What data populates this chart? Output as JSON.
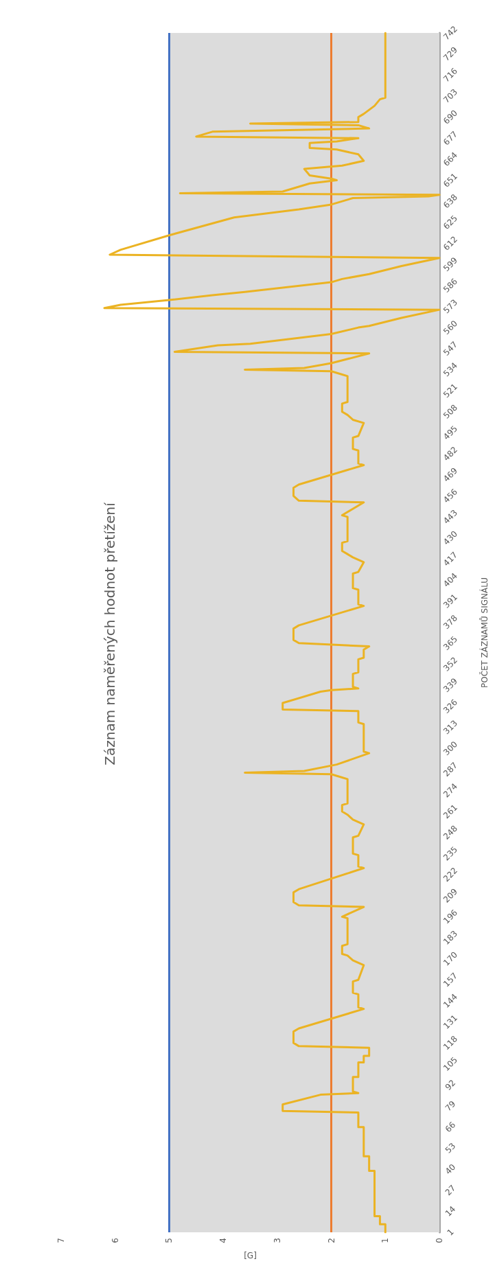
{
  "chart_data": {
    "type": "line",
    "title": "Záznam naměřených hodnot přetížení",
    "xlabel": "[G]",
    "ylabel": "POČET ZÁZNAMŮ SIGNÁLU",
    "series": [
      {
        "color": "#ebb323",
        "x": [
          1.0,
          1.0,
          1.1,
          1.1,
          1.2,
          1.2,
          1.3,
          1.3,
          1.4,
          1.4,
          1.5,
          1.5,
          2.9,
          2.9,
          2.2,
          1.5,
          1.6,
          1.6,
          1.5,
          1.5,
          1.4,
          1.4,
          1.3,
          1.3,
          2.6,
          2.7,
          2.7,
          2.6,
          1.4,
          1.5,
          1.5,
          1.6,
          1.6,
          1.5,
          1.4,
          1.6,
          1.7,
          1.8,
          1.8,
          1.7,
          1.7,
          1.8,
          1.4,
          2.6,
          2.7,
          2.7,
          2.6,
          1.4,
          1.5,
          1.5,
          1.6,
          1.6,
          1.5,
          1.4,
          1.6,
          1.7,
          1.8,
          1.8,
          1.7,
          1.7,
          1.8,
          2.0,
          3.6,
          2.5,
          1.9,
          1.3,
          1.4,
          1.4,
          1.5,
          1.5,
          2.9,
          2.9,
          2.2,
          2.0,
          1.5,
          1.6,
          1.6,
          1.5,
          1.5,
          1.4,
          1.4,
          1.3,
          2.6,
          2.7,
          2.7,
          2.6,
          1.4,
          1.5,
          1.5,
          1.6,
          1.6,
          1.5,
          1.4,
          1.6,
          1.7,
          1.8,
          1.8,
          1.7,
          1.7,
          1.8,
          1.4,
          2.6,
          2.7,
          2.7,
          2.6,
          1.4,
          1.5,
          1.5,
          1.6,
          1.6,
          1.5,
          1.4,
          1.6,
          1.7,
          1.8,
          1.8,
          1.7,
          1.7,
          1.8,
          2.0,
          3.6,
          2.5,
          2.0,
          1.3,
          4.9,
          4.1,
          3.5,
          2.0,
          1.5,
          1.3,
          0.7,
          0,
          6.2,
          5.9,
          5.0,
          4.2,
          3.6,
          2.0,
          1.8,
          1.3,
          0.7,
          0,
          6.1,
          5.9,
          5.0,
          3.8,
          2.6,
          2.0,
          1.6,
          0.2,
          0,
          4.8,
          2.9,
          2.4,
          1.9,
          2.0,
          2.4,
          2.5,
          1.8,
          1.4,
          1.5,
          1.9,
          2.4,
          2.4,
          1.9,
          1.5,
          4.5,
          4.2,
          1.3,
          1.5,
          3.5,
          1.5,
          1.5,
          1.4,
          1.2,
          1.1,
          1.0,
          1.0
        ],
        "values": [
          1,
          6,
          6,
          11,
          11,
          39,
          39,
          48,
          48,
          66,
          66,
          75,
          76,
          80,
          86,
          87,
          88,
          97,
          97,
          106,
          106,
          110,
          110,
          115,
          116,
          118,
          125,
          127,
          139,
          140,
          148,
          149,
          156,
          157,
          166,
          169,
          172,
          173,
          178,
          179,
          195,
          196,
          202,
          203,
          205,
          211,
          213,
          226,
          227,
          234,
          235,
          245,
          246,
          253,
          256,
          259,
          261,
          265,
          266,
          281,
          282,
          284,
          285,
          286,
          290,
          297,
          298,
          315,
          316,
          323,
          324,
          328,
          335,
          336,
          337,
          338,
          346,
          347,
          355,
          356,
          361,
          363,
          365,
          367,
          374,
          376,
          388,
          389,
          398,
          399,
          408,
          409,
          415,
          418,
          420,
          422,
          427,
          428,
          443,
          444,
          452,
          453,
          456,
          461,
          463,
          475,
          476,
          484,
          485,
          492,
          493,
          501,
          503,
          506,
          508,
          513,
          514,
          530,
          531,
          533,
          534,
          535,
          538,
          544,
          545,
          549,
          550,
          556,
          560,
          561,
          566,
          571,
          572,
          574,
          577,
          580,
          582,
          588,
          590,
          593,
          598,
          603,
          605,
          608,
          617,
          628,
          633,
          636,
          640,
          641,
          642,
          643,
          644,
          649,
          651,
          652,
          654,
          658,
          660,
          663,
          667,
          670,
          671,
          674,
          675,
          677,
          678,
          681,
          683,
          685,
          686,
          687,
          690,
          692,
          697,
          701,
          702,
          742
        ]
      }
    ],
    "ylim": [
      1,
      742
    ],
    "yticks": [
      1,
      14,
      27,
      40,
      53,
      66,
      79,
      92,
      105,
      118,
      131,
      144,
      157,
      170,
      183,
      196,
      209,
      222,
      235,
      248,
      261,
      274,
      287,
      300,
      313,
      326,
      339,
      352,
      365,
      378,
      391,
      404,
      417,
      430,
      443,
      456,
      469,
      482,
      495,
      508,
      521,
      534,
      547,
      560,
      573,
      586,
      599,
      612,
      625,
      638,
      651,
      664,
      677,
      690,
      703,
      716,
      729,
      742
    ],
    "xlim": [
      7,
      0
    ],
    "xticks": [
      0,
      1,
      2,
      3,
      4,
      5,
      6,
      7
    ],
    "ref_lines": [
      {
        "axis": "x",
        "value": 5,
        "color": "#4472c4"
      },
      {
        "axis": "x",
        "value": 2,
        "color": "#ed7d31"
      }
    ],
    "bands": [
      {
        "axis": "x",
        "from": 0,
        "to": 5,
        "color": "#dcdcdc"
      }
    ],
    "marker": "none",
    "line_style": "solid",
    "grid": false
  }
}
